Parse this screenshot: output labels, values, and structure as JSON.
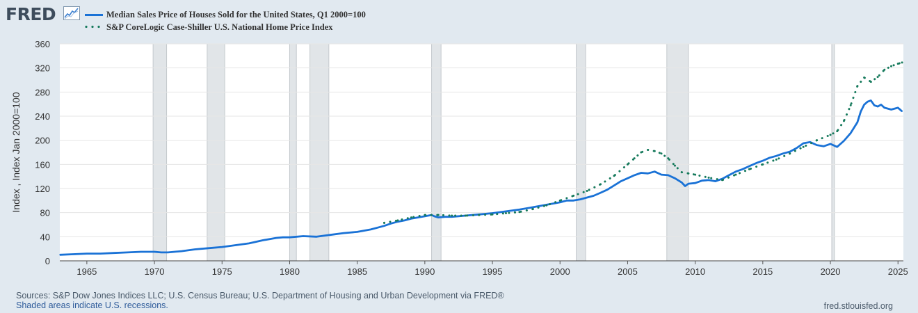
{
  "brand": {
    "name": "FRED"
  },
  "colors": {
    "series1": "#1a72d6",
    "series2": "#167a5c",
    "recession": "#e1e5e8",
    "background": "#e1e9f0"
  },
  "legend": [
    {
      "label": "Median Sales Price of Houses Sold for the United States, Q1 2000=100",
      "style": "solid",
      "color": "#1a72d6"
    },
    {
      "label": "S&P CoreLogic Case-Shiller U.S. National Home Price Index",
      "style": "dotted",
      "color": "#167a5c"
    }
  ],
  "footer": {
    "sources": "Sources: S&P Dow Jones Indices LLC; U.S. Census Bureau; U.S. Department of Housing and Urban Development via FRED®",
    "note": "Shaded areas indicate U.S. recessions.",
    "site": "fred.stlouisfed.org"
  },
  "chart_data": {
    "type": "line",
    "title": "",
    "xlabel": "",
    "ylabel": "Index , Index Jan 2000=100",
    "xlim": [
      1963.0,
      2025.4
    ],
    "ylim": [
      0,
      360
    ],
    "yticks": [
      0,
      40,
      80,
      120,
      160,
      200,
      240,
      280,
      320,
      360
    ],
    "xticks": [
      1965,
      1970,
      1975,
      1980,
      1985,
      1990,
      1995,
      2000,
      2005,
      2010,
      2015,
      2020,
      2025
    ],
    "grid": true,
    "recessions": [
      [
        1969.9,
        1970.9
      ],
      [
        1973.9,
        1975.2
      ],
      [
        1980.0,
        1980.5
      ],
      [
        1981.5,
        1982.9
      ],
      [
        1990.5,
        1991.2
      ],
      [
        2001.2,
        2001.9
      ],
      [
        2007.9,
        2009.5
      ],
      [
        2020.1,
        2020.3
      ]
    ],
    "series": [
      {
        "name": "Median Sales Price of Houses Sold for the United States, Q1 2000=100",
        "style": "solid",
        "x": [
          1963.0,
          1964.0,
          1965.0,
          1966.0,
          1967.0,
          1968.0,
          1969.0,
          1970.0,
          1970.5,
          1971.0,
          1972.0,
          1973.0,
          1974.0,
          1975.0,
          1976.0,
          1977.0,
          1978.0,
          1979.0,
          1979.5,
          1980.0,
          1981.0,
          1982.0,
          1982.3,
          1983.0,
          1984.0,
          1985.0,
          1986.0,
          1986.5,
          1987.0,
          1987.5,
          1988.0,
          1988.5,
          1989.0,
          1989.5,
          1990.0,
          1990.5,
          1990.7,
          1991.0,
          1991.5,
          1992.0,
          1993.0,
          1994.0,
          1995.0,
          1996.0,
          1997.0,
          1998.0,
          1999.0,
          2000.0,
          2000.5,
          2001.0,
          2001.5,
          2002.0,
          2002.5,
          2003.0,
          2003.5,
          2004.0,
          2004.5,
          2005.0,
          2005.5,
          2006.0,
          2006.5,
          2007.0,
          2007.5,
          2008.0,
          2008.5,
          2009.0,
          2009.25,
          2009.5,
          2010.0,
          2010.5,
          2011.0,
          2011.5,
          2012.0,
          2012.5,
          2013.0,
          2013.5,
          2014.0,
          2014.5,
          2015.0,
          2015.5,
          2016.0,
          2016.5,
          2017.0,
          2017.5,
          2018.0,
          2018.5,
          2019.0,
          2019.5,
          2020.0,
          2020.5,
          2021.0,
          2021.5,
          2022.0,
          2022.25,
          2022.5,
          2022.75,
          2023.0,
          2023.25,
          2023.5,
          2023.75,
          2024.0,
          2024.5,
          2025.0,
          2025.3
        ],
        "values": [
          10,
          11,
          12,
          12,
          13,
          14,
          15,
          15,
          14,
          14,
          16,
          19,
          21,
          23,
          26,
          29,
          34,
          38,
          39,
          39,
          41,
          40,
          41,
          43,
          46,
          48,
          52,
          55,
          58,
          62,
          65,
          67,
          70,
          72,
          74,
          76,
          74,
          72,
          73,
          73,
          75,
          77,
          79,
          82,
          85,
          89,
          93,
          97,
          100,
          100,
          102,
          105,
          108,
          113,
          118,
          125,
          132,
          137,
          142,
          146,
          145,
          148,
          143,
          142,
          137,
          130,
          124,
          128,
          129,
          133,
          134,
          132,
          136,
          142,
          148,
          152,
          157,
          162,
          166,
          171,
          174,
          178,
          181,
          187,
          195,
          197,
          192,
          190,
          194,
          189,
          199,
          212,
          230,
          248,
          259,
          264,
          266,
          258,
          256,
          259,
          254,
          251,
          254,
          248
        ]
      },
      {
        "name": "S&P CoreLogic Case-Shiller U.S. National Home Price Index",
        "style": "dotted",
        "x": [
          1987.0,
          1988.0,
          1989.0,
          1990.0,
          1991.0,
          1992.0,
          1993.0,
          1994.0,
          1995.0,
          1996.0,
          1997.0,
          1998.0,
          1999.0,
          2000.0,
          2001.0,
          2002.0,
          2003.0,
          2004.0,
          2005.0,
          2005.5,
          2006.0,
          2006.5,
          2007.0,
          2007.5,
          2008.0,
          2008.5,
          2009.0,
          2009.5,
          2010.0,
          2011.0,
          2012.0,
          2013.0,
          2014.0,
          2015.0,
          2016.0,
          2017.0,
          2018.0,
          2019.0,
          2020.0,
          2020.5,
          2021.0,
          2021.5,
          2022.0,
          2022.5,
          2023.0,
          2023.5,
          2024.0,
          2024.5,
          2025.0,
          2025.3
        ],
        "values": [
          63,
          67,
          72,
          76,
          76,
          75,
          75,
          76,
          77,
          79,
          81,
          86,
          92,
          100,
          108,
          116,
          127,
          141,
          160,
          170,
          180,
          184,
          182,
          178,
          170,
          158,
          147,
          145,
          143,
          138,
          134,
          143,
          152,
          160,
          168,
          178,
          189,
          200,
          209,
          215,
          232,
          258,
          290,
          304,
          297,
          305,
          317,
          323,
          327,
          329
        ]
      }
    ]
  }
}
